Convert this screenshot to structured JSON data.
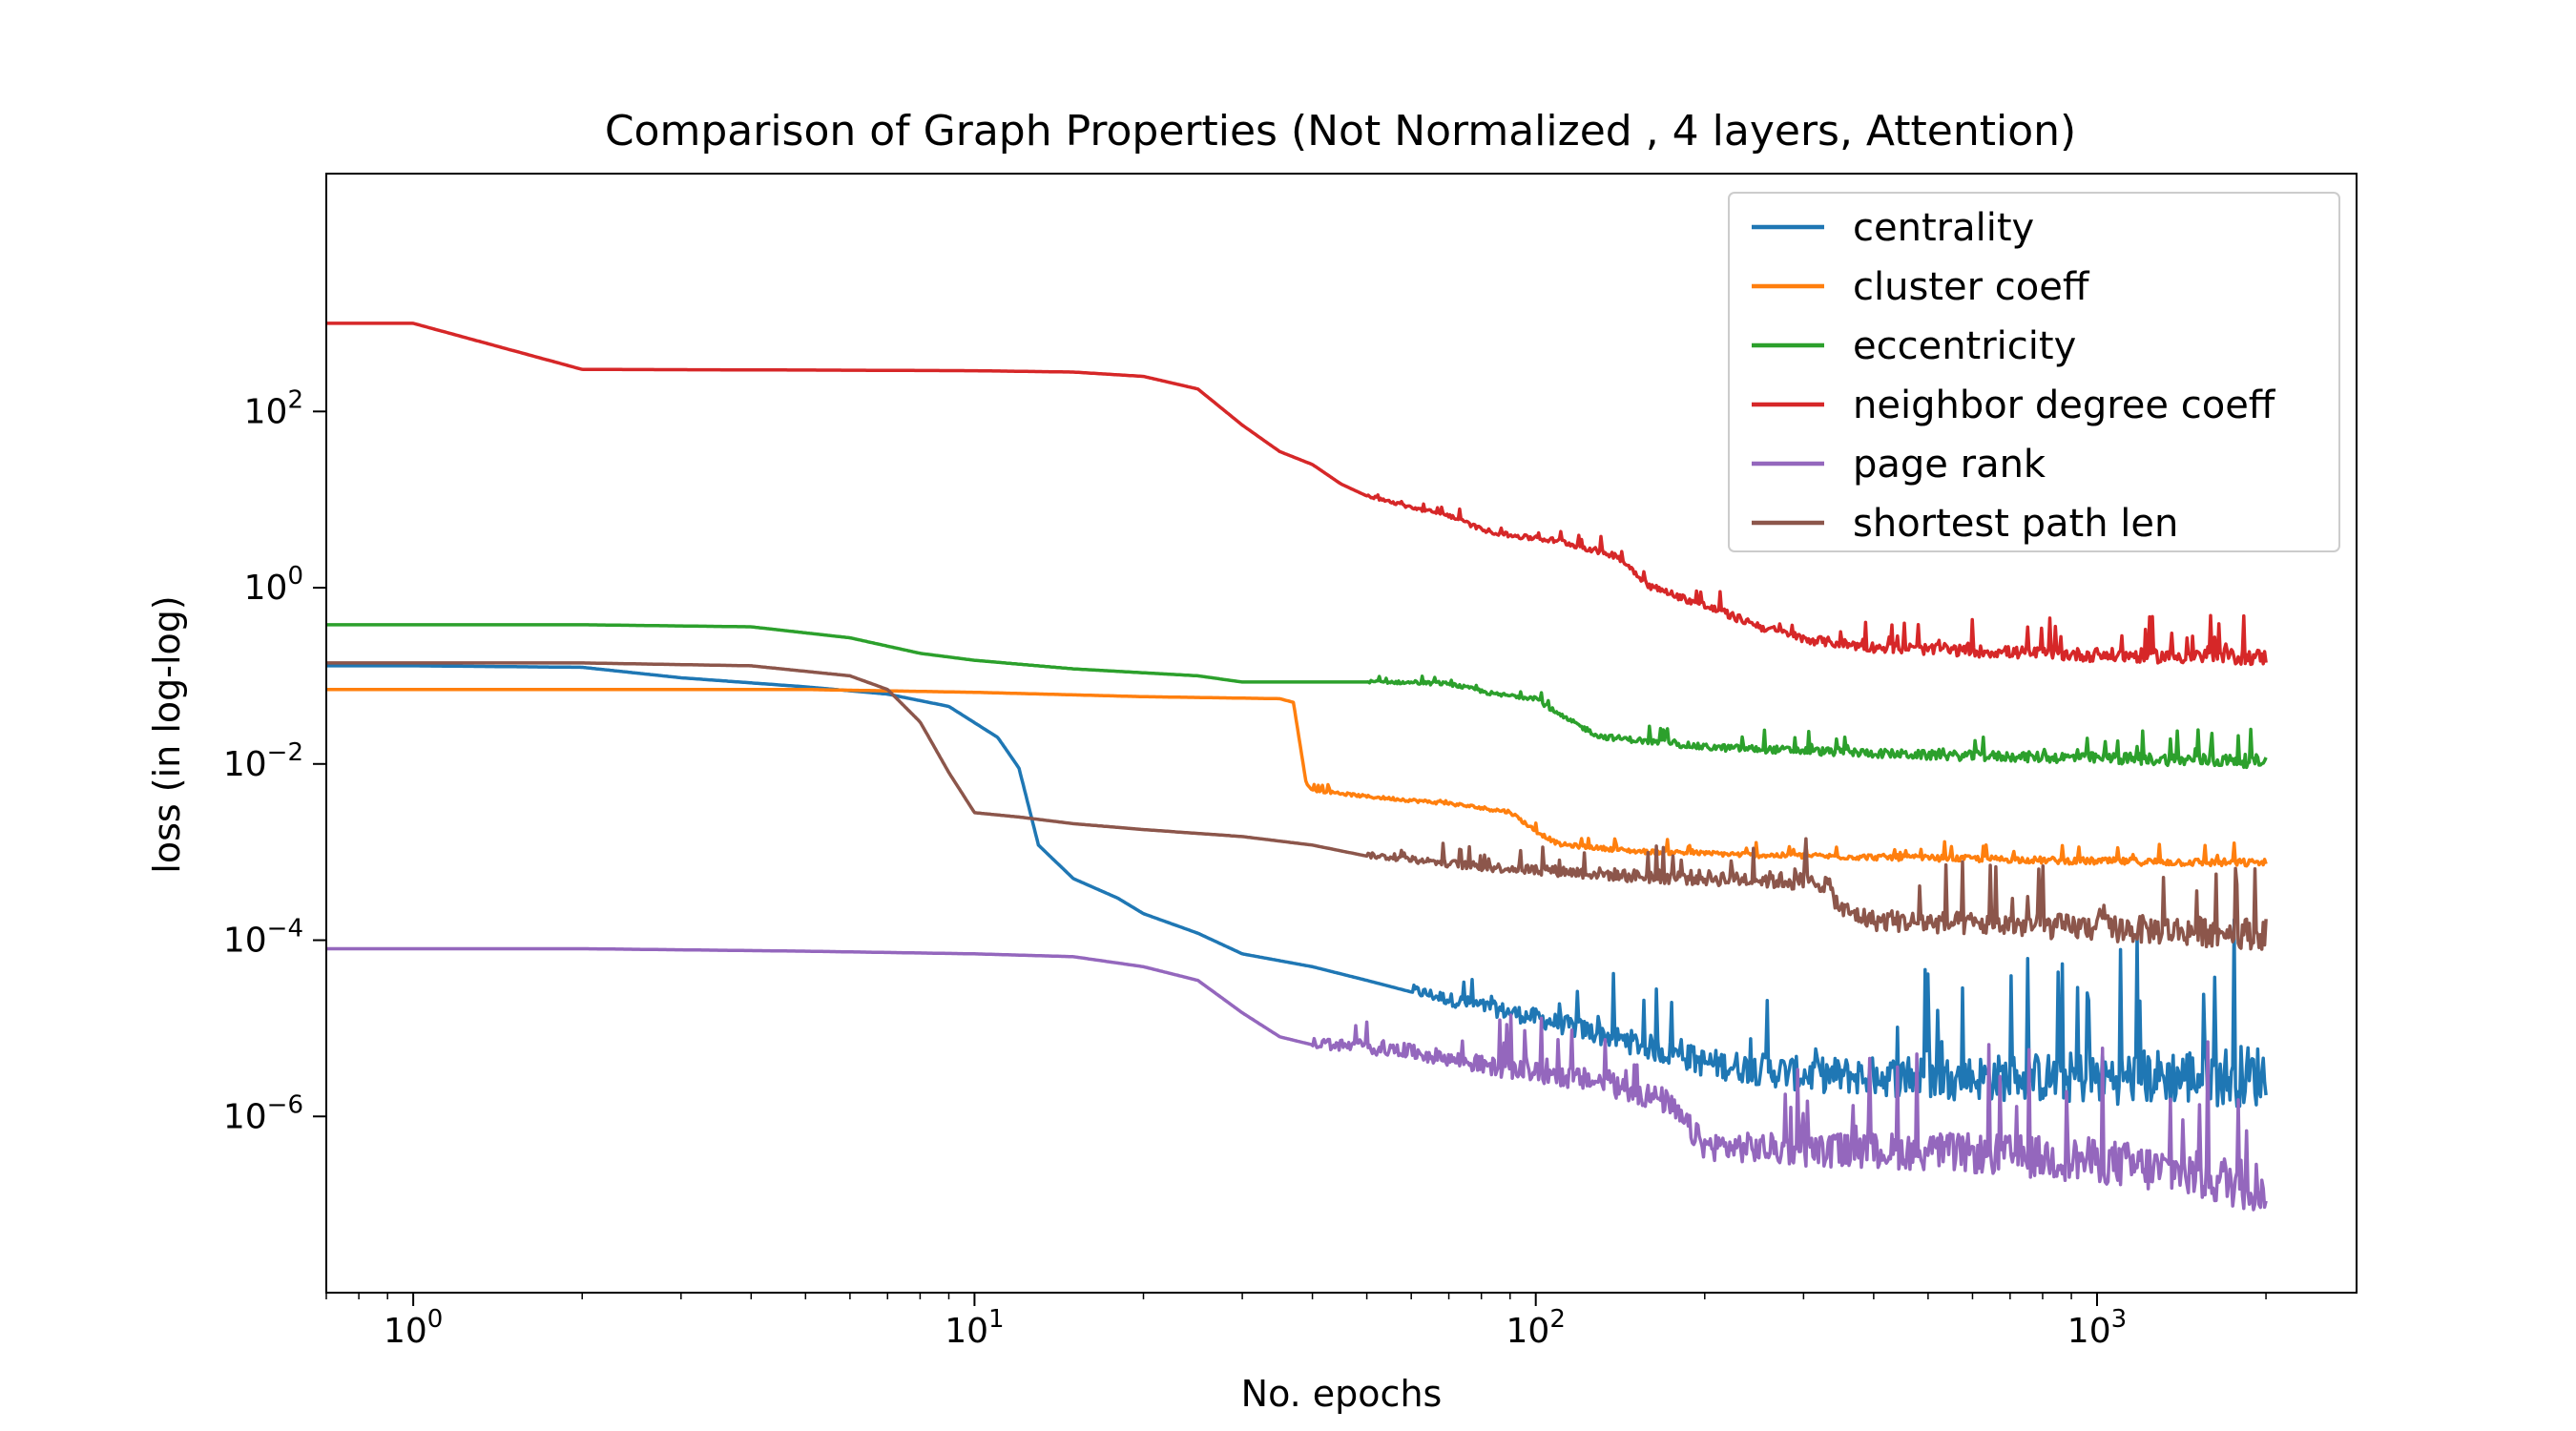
{
  "chart_data": {
    "type": "line",
    "title": "Comparison of Graph Properties (Not Normalized , 4 layers, Attention)",
    "xlabel": "No. epochs",
    "ylabel": "loss (in log-log)",
    "x_scale": "log",
    "y_scale": "log",
    "xlim": [
      0.7,
      2900
    ],
    "ylim": [
      1e-08,
      50000
    ],
    "x_ticks": [
      {
        "value": 1,
        "base": "10",
        "exp": "0"
      },
      {
        "value": 10,
        "base": "10",
        "exp": "1"
      },
      {
        "value": 100,
        "base": "10",
        "exp": "2"
      },
      {
        "value": 1000,
        "base": "10",
        "exp": "3"
      }
    ],
    "y_ticks": [
      {
        "value": 1e-06,
        "base": "10",
        "exp": "−6"
      },
      {
        "value": 0.0001,
        "base": "10",
        "exp": "−4"
      },
      {
        "value": 0.01,
        "base": "10",
        "exp": "−2"
      },
      {
        "value": 1,
        "base": "10",
        "exp": "0"
      },
      {
        "value": 100,
        "base": "10",
        "exp": "2"
      }
    ],
    "grid": false,
    "legend_position": "top-right",
    "series": [
      {
        "name": "centrality",
        "color": "#1f77b4",
        "points": [
          [
            0.7,
            0.13
          ],
          [
            1,
            0.13
          ],
          [
            2,
            0.125
          ],
          [
            3,
            0.095
          ],
          [
            5,
            0.075
          ],
          [
            7,
            0.062
          ],
          [
            9,
            0.045
          ],
          [
            11,
            0.02
          ],
          [
            12,
            0.009
          ],
          [
            13,
            0.0012
          ],
          [
            15,
            0.0005
          ],
          [
            18,
            0.0003
          ],
          [
            20,
            0.0002
          ],
          [
            25,
            0.00012
          ],
          [
            30,
            7e-05
          ],
          [
            40,
            5e-05
          ],
          [
            50,
            3.5e-05
          ],
          [
            70,
            2e-05
          ],
          [
            100,
            1.2e-05
          ],
          [
            150,
            6e-06
          ],
          [
            200,
            3.5e-06
          ],
          [
            300,
            2.5e-06
          ],
          [
            500,
            2.2e-06
          ],
          [
            1000,
            2.1e-06
          ],
          [
            2000,
            2.1e-06
          ]
        ],
        "noise_start": 60,
        "noise_end": 2000,
        "noise_amp": [
          0.2,
          1.2
        ]
      },
      {
        "name": "cluster coeff",
        "color": "#ff7f0e",
        "points": [
          [
            0.7,
            0.07
          ],
          [
            5,
            0.07
          ],
          [
            10,
            0.065
          ],
          [
            20,
            0.058
          ],
          [
            35,
            0.055
          ],
          [
            37,
            0.05
          ],
          [
            39,
            0.006
          ],
          [
            40,
            0.005
          ],
          [
            50,
            0.0042
          ],
          [
            70,
            0.0035
          ],
          [
            90,
            0.0028
          ],
          [
            100,
            0.0017
          ],
          [
            110,
            0.0012
          ],
          [
            150,
            0.001
          ],
          [
            250,
            0.0009
          ],
          [
            400,
            0.00085
          ],
          [
            700,
            0.0008
          ],
          [
            800,
            0.00078
          ],
          [
            1000,
            0.00076
          ],
          [
            2000,
            0.00072
          ]
        ],
        "noise_start": 40,
        "noise_end": 2000,
        "noise_amp": [
          0.05,
          0.15
        ]
      },
      {
        "name": "eccentricity",
        "color": "#2ca02c",
        "points": [
          [
            0.7,
            0.38
          ],
          [
            2,
            0.38
          ],
          [
            4,
            0.36
          ],
          [
            6,
            0.27
          ],
          [
            8,
            0.18
          ],
          [
            10,
            0.15
          ],
          [
            15,
            0.12
          ],
          [
            25,
            0.1
          ],
          [
            30,
            0.085
          ],
          [
            50,
            0.085
          ],
          [
            70,
            0.08
          ],
          [
            85,
            0.06
          ],
          [
            100,
            0.055
          ],
          [
            110,
            0.035
          ],
          [
            130,
            0.02
          ],
          [
            200,
            0.015
          ],
          [
            500,
            0.012
          ],
          [
            1000,
            0.011
          ],
          [
            2000,
            0.01
          ]
        ],
        "noise_start": 50,
        "noise_end": 2000,
        "noise_amp": [
          0.05,
          0.25
        ]
      },
      {
        "name": "neighbor degree coeff",
        "color": "#d62728",
        "points": [
          [
            0.7,
            1000
          ],
          [
            1,
            1000
          ],
          [
            2,
            300
          ],
          [
            5,
            295
          ],
          [
            10,
            290
          ],
          [
            15,
            280
          ],
          [
            20,
            250
          ],
          [
            25,
            180
          ],
          [
            30,
            70
          ],
          [
            35,
            35
          ],
          [
            40,
            25
          ],
          [
            45,
            15
          ],
          [
            50,
            11
          ],
          [
            60,
            8
          ],
          [
            70,
            6.5
          ],
          [
            80,
            4.5
          ],
          [
            90,
            3.8
          ],
          [
            110,
            3.3
          ],
          [
            140,
            2.2
          ],
          [
            160,
            1
          ],
          [
            200,
            0.6
          ],
          [
            250,
            0.35
          ],
          [
            300,
            0.25
          ],
          [
            400,
            0.2
          ],
          [
            600,
            0.18
          ],
          [
            1000,
            0.16
          ],
          [
            2000,
            0.15
          ]
        ],
        "noise_start": 50,
        "noise_end": 2000,
        "noise_amp": [
          0.05,
          0.3
        ]
      },
      {
        "name": "page rank",
        "color": "#9467bd",
        "points": [
          [
            0.7,
            8e-05
          ],
          [
            2,
            8e-05
          ],
          [
            5,
            7.5e-05
          ],
          [
            10,
            7e-05
          ],
          [
            15,
            6.5e-05
          ],
          [
            20,
            5e-05
          ],
          [
            25,
            3.5e-05
          ],
          [
            30,
            1.5e-05
          ],
          [
            35,
            8e-06
          ],
          [
            40,
            6.5e-06
          ],
          [
            60,
            5e-06
          ],
          [
            80,
            3.5e-06
          ],
          [
            100,
            2.8e-06
          ],
          [
            130,
            2.2e-06
          ],
          [
            170,
            1.3e-06
          ],
          [
            200,
            4e-07
          ],
          [
            300,
            3.5e-07
          ],
          [
            500,
            3.3e-07
          ],
          [
            1000,
            2.5e-07
          ],
          [
            2000,
            1.2e-07
          ]
        ],
        "noise_start": 40,
        "noise_end": 2000,
        "noise_amp": [
          0.2,
          1.0
        ]
      },
      {
        "name": "shortest path len",
        "color": "#8c564b",
        "points": [
          [
            0.7,
            0.14
          ],
          [
            2,
            0.14
          ],
          [
            4,
            0.13
          ],
          [
            6,
            0.1
          ],
          [
            7,
            0.07
          ],
          [
            8,
            0.03
          ],
          [
            9,
            0.008
          ],
          [
            10,
            0.0028
          ],
          [
            12,
            0.0025
          ],
          [
            15,
            0.0021
          ],
          [
            20,
            0.0018
          ],
          [
            30,
            0.0015
          ],
          [
            40,
            0.0012
          ],
          [
            50,
            0.0009
          ],
          [
            60,
            0.0008
          ],
          [
            80,
            0.00065
          ],
          [
            100,
            0.0006
          ],
          [
            150,
            0.0005
          ],
          [
            250,
            0.00045
          ],
          [
            330,
            0.0004
          ],
          [
            350,
            0.0002
          ],
          [
            400,
            0.00015
          ],
          [
            1000,
            0.00012
          ],
          [
            2000,
            0.0001
          ]
        ],
        "noise_start": 50,
        "noise_end": 2000,
        "noise_amp": [
          0.1,
          0.6
        ]
      }
    ]
  }
}
